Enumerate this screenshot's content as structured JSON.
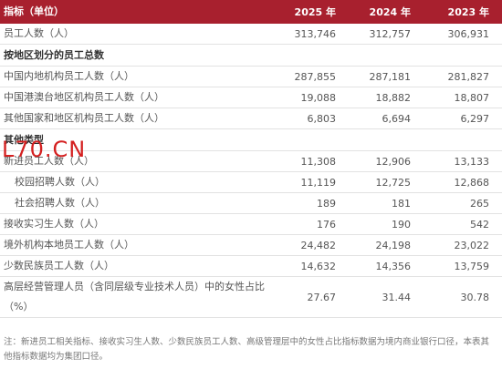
{
  "table": {
    "header": [
      "指标（单位）",
      "2025 年",
      "2024 年",
      "2023 年"
    ],
    "rows": [
      {
        "label": "员工人数（人）",
        "values": [
          "313,746",
          "312,757",
          "306,931"
        ]
      },
      {
        "title": "按地区划分的员工总数"
      },
      {
        "label": "中国内地机构员工人数（人）",
        "values": [
          "287,855",
          "287,181",
          "281,827"
        ]
      },
      {
        "label": "中国港澳台地区机构员工人数（人）",
        "values": [
          "19,088",
          "18,882",
          "18,807"
        ]
      },
      {
        "label": "其他国家和地区机构员工人数（人）",
        "values": [
          "6,803",
          "6,694",
          "6,297"
        ]
      },
      {
        "title": "其他类型"
      },
      {
        "label": "新进员工人数（人）",
        "values": [
          "11,308",
          "12,906",
          "13,133"
        ],
        "children": [
          {
            "label": "校园招聘人数（人）",
            "values": [
              "11,119",
              "12,725",
              "12,868"
            ]
          },
          {
            "label": "社会招聘人数（人）",
            "values": [
              "189",
              "181",
              "265"
            ]
          }
        ]
      },
      {
        "label": "接收实习生人数（人）",
        "values": [
          "176",
          "190",
          "542"
        ]
      },
      {
        "label": "境外机构本地员工人数（人）",
        "values": [
          "24,482",
          "24,198",
          "23,022"
        ]
      },
      {
        "label": "少数民族员工人数（人）",
        "values": [
          "14,632",
          "14,356",
          "13,759"
        ]
      },
      {
        "label": "高层经营管理人员（含同层级专业技术人员）中的女性占比（%）",
        "values": [
          "27.67",
          "31.44",
          "30.78"
        ]
      }
    ]
  },
  "note": "注：新进员工相关指标、接收实习生人数、少数民族员工人数、高级管理层中的女性占比指标数据为境内商业银行口径，本表其他指标数据均为集团口径。",
  "watermark": "L70.CN"
}
